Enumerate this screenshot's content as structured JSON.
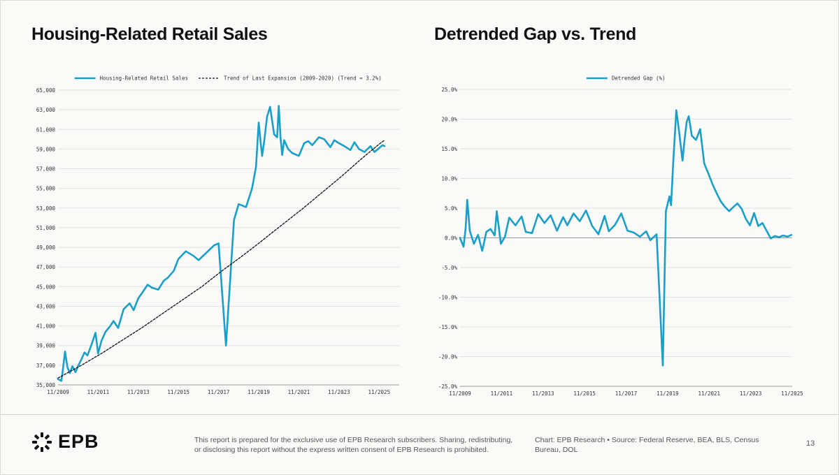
{
  "chart_data": [
    {
      "type": "line",
      "title": "Housing-Related Retail Sales",
      "legend_position": "top",
      "ylim": [
        35000,
        65000
      ],
      "y_ticks": [
        35000,
        37000,
        39000,
        41000,
        43000,
        45000,
        47000,
        49000,
        51000,
        53000,
        55000,
        57000,
        59000,
        61000,
        63000,
        65000
      ],
      "y_tick_labels": [
        "35,000",
        "37,000",
        "39,000",
        "41,000",
        "43,000",
        "45,000",
        "47,000",
        "49,000",
        "51,000",
        "53,000",
        "55,000",
        "57,000",
        "59,000",
        "61,000",
        "63,000",
        "65,000"
      ],
      "x_range": [
        2009.833,
        2026.833
      ],
      "x_ticks": [
        2009.833,
        2011.833,
        2013.833,
        2015.833,
        2017.833,
        2019.833,
        2021.833,
        2023.833,
        2025.833
      ],
      "x_tick_labels": [
        "11/2009",
        "11/2011",
        "11/2013",
        "11/2015",
        "11/2017",
        "11/2019",
        "11/2021",
        "11/2023",
        "11/2025"
      ],
      "grid": "horizontal",
      "series": [
        {
          "name": "Housing-Related Retail Sales",
          "color": "#1a9fc9",
          "style": "solid",
          "x": [
            2009.83,
            2010.0,
            2010.1,
            2010.18,
            2010.3,
            2010.42,
            2010.55,
            2010.7,
            2010.85,
            2011.0,
            2011.15,
            2011.3,
            2011.5,
            2011.7,
            2011.83,
            2012.0,
            2012.2,
            2012.4,
            2012.6,
            2012.83,
            2013.1,
            2013.4,
            2013.6,
            2013.83,
            2014.1,
            2014.3,
            2014.5,
            2014.83,
            2015.1,
            2015.3,
            2015.6,
            2015.83,
            2016.2,
            2016.6,
            2016.83,
            2017.2,
            2017.6,
            2017.83,
            2018.2,
            2018.6,
            2018.83,
            2019.2,
            2019.5,
            2019.7,
            2019.83,
            2019.92,
            2020.0,
            2020.1,
            2020.25,
            2020.4,
            2020.6,
            2020.75,
            2020.83,
            2020.92,
            2021.0,
            2021.1,
            2021.3,
            2021.5,
            2021.83,
            2022.1,
            2022.3,
            2022.5,
            2022.83,
            2023.1,
            2023.4,
            2023.6,
            2023.83,
            2024.1,
            2024.4,
            2024.6,
            2024.83,
            2025.1,
            2025.4,
            2025.6,
            2025.83,
            2026.0,
            2026.1
          ],
          "values": [
            35600,
            35400,
            37000,
            38400,
            36800,
            36200,
            36900,
            36300,
            37000,
            37600,
            38300,
            38000,
            39100,
            40300,
            38200,
            39500,
            40400,
            40900,
            41500,
            40800,
            42700,
            43300,
            42600,
            43800,
            44600,
            45200,
            44900,
            44700,
            45600,
            45900,
            46600,
            47800,
            48600,
            48100,
            47700,
            48400,
            49200,
            49400,
            39000,
            51800,
            53400,
            53100,
            55000,
            57200,
            61700,
            59800,
            58300,
            59700,
            62300,
            63300,
            60500,
            60200,
            63400,
            60100,
            58400,
            59900,
            59000,
            58600,
            58300,
            59600,
            59800,
            59400,
            60200,
            60000,
            59200,
            59900,
            59600,
            59300,
            58900,
            59700,
            59000,
            58700,
            59300,
            58700,
            59100,
            59400,
            59300
          ]
        },
        {
          "name": "Trend of Last Expansion (2009-2020) (Trend = 3.2%)",
          "color": "#111111",
          "style": "dashed",
          "x": [
            2009.83,
            2011.0,
            2012.0,
            2013.0,
            2014.0,
            2015.0,
            2016.0,
            2017.0,
            2018.0,
            2019.0,
            2019.83,
            2020.5,
            2021.0,
            2022.0,
            2023.0,
            2024.0,
            2025.0,
            2025.83,
            2026.1
          ],
          "values": [
            35700,
            37000,
            38200,
            39500,
            40800,
            42200,
            43600,
            45000,
            46600,
            48100,
            49400,
            50500,
            51300,
            52900,
            54600,
            56300,
            58100,
            59500,
            59900
          ]
        }
      ],
      "legend": [
        "Housing-Related Retail Sales",
        "Trend of Last Expansion (2009-2020) (Trend = 3.2%)"
      ]
    },
    {
      "type": "line",
      "title": "Detrended Gap vs. Trend",
      "legend_position": "top",
      "ylim": [
        -25,
        25
      ],
      "y_ticks": [
        -25,
        -20,
        -15,
        -10,
        -5,
        0,
        5,
        10,
        15,
        20,
        25
      ],
      "y_tick_labels": [
        "-25.0%",
        "-20.0%",
        "-15.0%",
        "-10.0%",
        "-5.0%",
        "0.0%",
        "5.0%",
        "10.0%",
        "15.0%",
        "20.0%",
        "25.0%"
      ],
      "x_range": [
        2009.833,
        2025.833
      ],
      "x_ticks": [
        2009.833,
        2011.833,
        2013.833,
        2015.833,
        2017.833,
        2019.833,
        2021.833,
        2023.833,
        2025.833
      ],
      "x_tick_labels": [
        "11/2009",
        "11/2011",
        "11/2013",
        "11/2015",
        "11/2017",
        "11/2019",
        "11/2021",
        "11/2023",
        "11/2025"
      ],
      "grid": "horizontal",
      "series": [
        {
          "name": "Detrended Gap (%)",
          "color": "#1a9fc9",
          "style": "solid",
          "x": [
            2009.83,
            2010.0,
            2010.1,
            2010.18,
            2010.3,
            2010.5,
            2010.7,
            2010.9,
            2011.1,
            2011.3,
            2011.5,
            2011.6,
            2011.8,
            2012.0,
            2012.2,
            2012.5,
            2012.8,
            2013.0,
            2013.3,
            2013.6,
            2013.9,
            2014.2,
            2014.5,
            2014.8,
            2015.0,
            2015.3,
            2015.6,
            2015.9,
            2016.2,
            2016.5,
            2016.8,
            2017.0,
            2017.3,
            2017.6,
            2017.9,
            2018.2,
            2018.5,
            2018.8,
            2019.0,
            2019.3,
            2019.6,
            2019.75,
            2019.92,
            2020.0,
            2020.1,
            2020.25,
            2020.4,
            2020.5,
            2020.55,
            2020.65,
            2020.75,
            2020.85,
            2021.0,
            2021.2,
            2021.4,
            2021.6,
            2021.8,
            2022.0,
            2022.2,
            2022.4,
            2022.6,
            2022.8,
            2023.0,
            2023.2,
            2023.4,
            2023.6,
            2023.8,
            2024.0,
            2024.2,
            2024.4,
            2024.6,
            2024.8,
            2025.0,
            2025.2,
            2025.4,
            2025.6,
            2025.8
          ],
          "values": [
            0,
            -1.5,
            1.5,
            6.4,
            1.2,
            -1.0,
            0.5,
            -2.2,
            1.0,
            1.5,
            0.4,
            4.5,
            -1.0,
            0.2,
            3.4,
            2.1,
            3.6,
            1.0,
            0.8,
            4.0,
            2.5,
            3.8,
            1.2,
            3.5,
            2.1,
            4.1,
            2.8,
            4.6,
            2.0,
            0.6,
            3.7,
            1.1,
            2.2,
            4.1,
            1.2,
            0.9,
            0.2,
            1.1,
            -0.4,
            0.6,
            -21.5,
            4.5,
            7.0,
            5.5,
            12.5,
            21.5,
            17.5,
            14.5,
            13.0,
            16.5,
            19.5,
            20.5,
            17.2,
            16.5,
            18.3,
            12.5,
            10.8,
            9.0,
            7.5,
            6.1,
            5.2,
            4.5,
            5.2,
            5.8,
            4.9,
            3.2,
            2.1,
            4.2,
            2.0,
            2.5,
            1.2,
            -0.1,
            0.3,
            0.1,
            0.4,
            0.2,
            0.5
          ]
        }
      ],
      "legend": [
        "Detrended Gap (%)"
      ]
    }
  ],
  "footer": {
    "logo_text": "EPB",
    "disclaimer": "This report is prepared for the exclusive use of EPB Research subscribers. Sharing, redistributing, or disclosing this report without the express written consent of EPB Research is prohibited.",
    "credit": "Chart: EPB Research  •  Source: Federal Reserve, BEA, BLS, Census Bureau, DOL",
    "page_number": "13"
  },
  "colors": {
    "series": "#1a9fc9",
    "trend": "#111111",
    "grid": "#e2e2e2",
    "text": "#111111"
  }
}
